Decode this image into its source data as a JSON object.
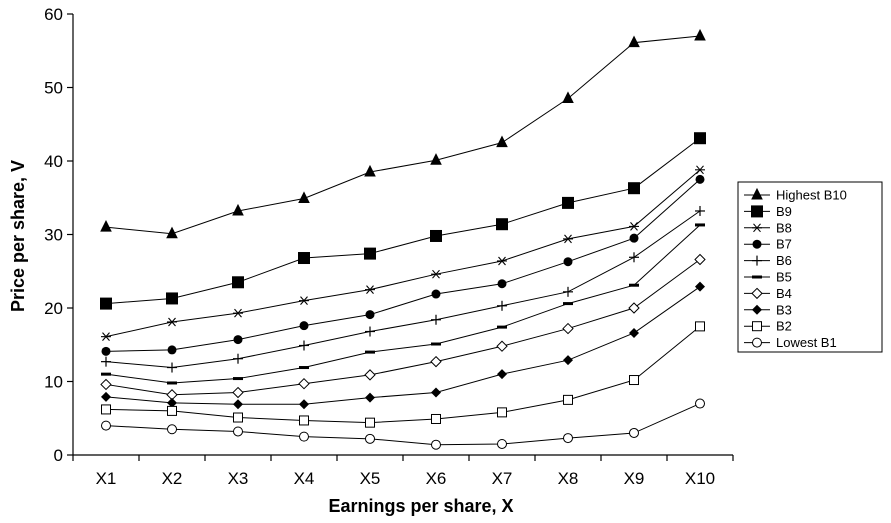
{
  "chart_data": {
    "type": "line",
    "title": "",
    "xlabel": "Earnings per share, X",
    "ylabel": "Price per share, V",
    "categories": [
      "X1",
      "X2",
      "X3",
      "X4",
      "X5",
      "X6",
      "X7",
      "X8",
      "X9",
      "X10"
    ],
    "ylim": [
      0,
      60
    ],
    "yticks": [
      "0",
      "10",
      "20",
      "30",
      "40",
      "50",
      "60"
    ],
    "grid": false,
    "legend": "right",
    "series": [
      {
        "name": "Highest B10",
        "marker": "triangle-filled",
        "values": [
          31.0,
          30.1,
          33.2,
          34.9,
          38.5,
          40.1,
          42.5,
          48.5,
          56.1,
          57.0
        ]
      },
      {
        "name": "B9",
        "marker": "square-filled",
        "values": [
          20.6,
          21.3,
          23.5,
          26.8,
          27.4,
          29.8,
          31.4,
          34.3,
          36.3,
          43.1
        ]
      },
      {
        "name": "B8",
        "marker": "asterisk",
        "values": [
          16.1,
          18.1,
          19.3,
          21.0,
          22.5,
          24.6,
          26.4,
          29.4,
          31.1,
          38.8
        ]
      },
      {
        "name": "B7",
        "marker": "circle-filled",
        "values": [
          14.1,
          14.3,
          15.7,
          17.6,
          19.1,
          21.9,
          23.3,
          26.3,
          29.5,
          37.5
        ]
      },
      {
        "name": "B6",
        "marker": "plus",
        "values": [
          12.7,
          11.9,
          13.1,
          14.9,
          16.8,
          18.4,
          20.3,
          22.2,
          26.9,
          33.2
        ]
      },
      {
        "name": "B5",
        "marker": "dash",
        "values": [
          11.0,
          9.8,
          10.4,
          11.9,
          14.0,
          15.1,
          17.4,
          20.6,
          23.1,
          31.3
        ]
      },
      {
        "name": "B4",
        "marker": "diamond-open",
        "values": [
          9.6,
          8.2,
          8.5,
          9.7,
          10.9,
          12.7,
          14.8,
          17.2,
          20.0,
          26.6
        ]
      },
      {
        "name": "B3",
        "marker": "diamond-filled",
        "values": [
          7.9,
          7.1,
          6.9,
          6.9,
          7.8,
          8.5,
          11.0,
          12.9,
          16.6,
          22.9
        ]
      },
      {
        "name": "B2",
        "marker": "square-open",
        "values": [
          6.2,
          6.0,
          5.1,
          4.7,
          4.4,
          4.9,
          5.8,
          7.5,
          10.2,
          17.5
        ]
      },
      {
        "name": "Lowest B1",
        "marker": "circle-open",
        "values": [
          4.0,
          3.5,
          3.2,
          2.5,
          2.2,
          1.4,
          1.5,
          2.3,
          3.0,
          7.0
        ]
      }
    ]
  }
}
